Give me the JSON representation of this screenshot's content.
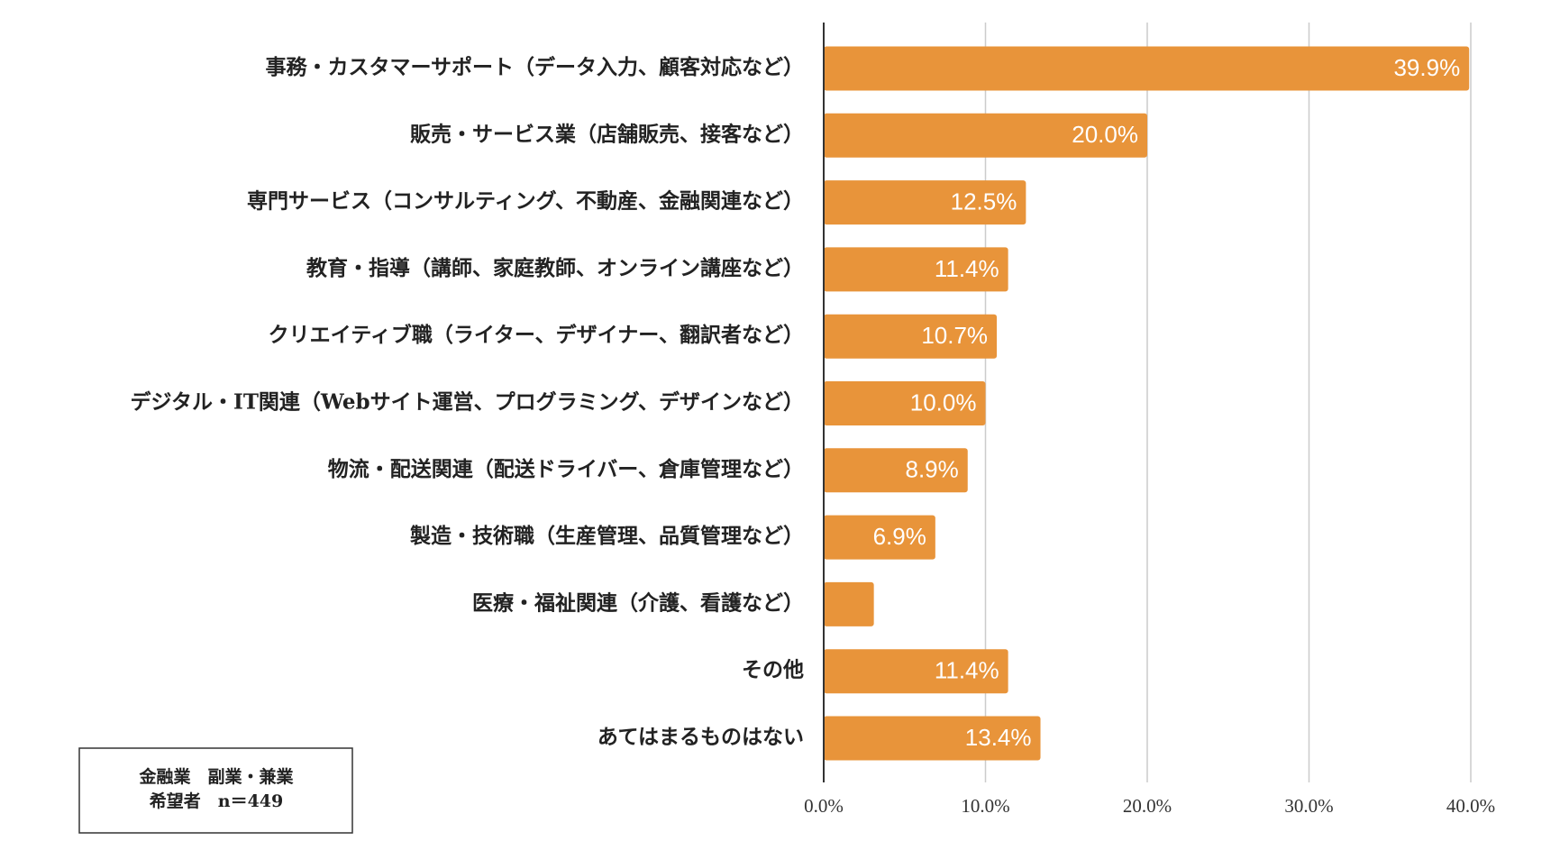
{
  "chart_data": {
    "type": "bar",
    "orientation": "horizontal",
    "categories": [
      "事務・カスタマーサポート（データ入力、顧客対応など）",
      "販売・サービス業（店舗販売、接客など）",
      "専門サービス（コンサルティング、不動産、金融関連など）",
      "教育・指導（講師、家庭教師、オンライン講座など）",
      "クリエイティブ職（ライター、デザイナー、翻訳者など）",
      "デジタル・IT関連（Webサイト運営、プログラミング、デザインなど）",
      "物流・配送関連（配送ドライバー、倉庫管理など）",
      "製造・技術職（生産管理、品質管理など）",
      "医療・福祉関連（介護、看護など）",
      "その他",
      "あてはまるものはない"
    ],
    "values": [
      39.9,
      20.0,
      12.5,
      11.4,
      10.7,
      10.0,
      8.9,
      6.9,
      3.1,
      11.4,
      13.4
    ],
    "value_labels": [
      "39.9%",
      "20.0%",
      "12.5%",
      "11.4%",
      "10.7%",
      "10.0%",
      "8.9%",
      "6.9%",
      null,
      "11.4%",
      "13.4%"
    ],
    "color": "#e8943a",
    "xlim": [
      0,
      40
    ],
    "xticks": [
      {
        "value": 0,
        "label": "0.0%"
      },
      {
        "value": 10,
        "label": "10.0%"
      },
      {
        "value": 20,
        "label": "20.0%"
      },
      {
        "value": 30,
        "label": "30.0%"
      },
      {
        "value": 40,
        "label": "40.0%"
      }
    ],
    "grid": true,
    "annotation": [
      "金融業　副業・兼業",
      "希望者　n＝449"
    ]
  }
}
